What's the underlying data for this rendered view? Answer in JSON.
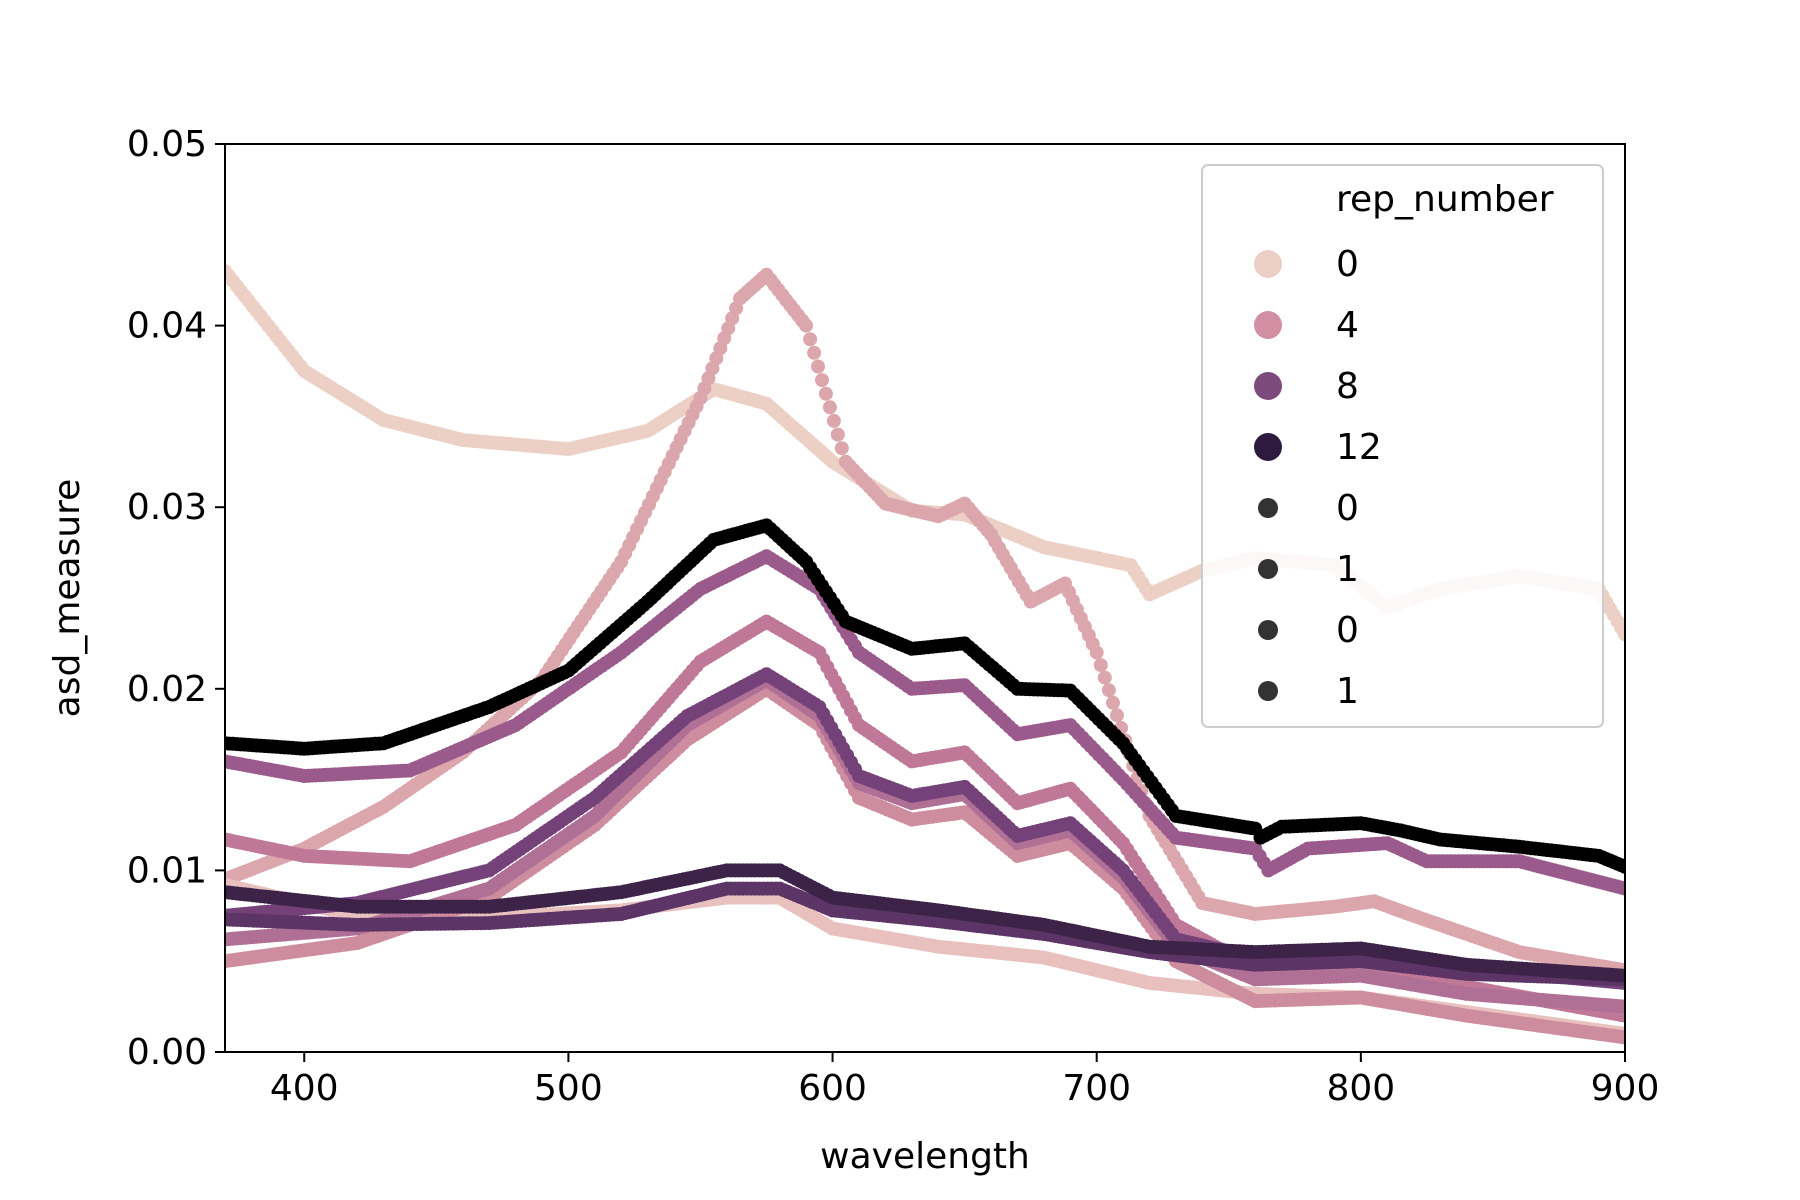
{
  "chart_data": {
    "type": "scatter",
    "title": "",
    "xlabel": "wavelength",
    "ylabel": "asd_measure",
    "xlim": [
      370,
      900
    ],
    "ylim": [
      0,
      0.05
    ],
    "xticks": [
      400,
      500,
      600,
      700,
      800,
      900
    ],
    "yticks": [
      0.0,
      0.01,
      0.02,
      0.03,
      0.04,
      0.05
    ],
    "ytick_labels": [
      "0.00",
      "0.01",
      "0.02",
      "0.03",
      "0.04",
      "0.05"
    ],
    "grid": false,
    "legend": {
      "placement": "top-right",
      "title": "rep_number",
      "entries": [
        {
          "label": "0",
          "color": "#ecd0c6",
          "size": "large"
        },
        {
          "label": "4",
          "color": "#d28ea2",
          "size": "large"
        },
        {
          "label": "8",
          "color": "#7d4a7e",
          "size": "large"
        },
        {
          "label": "12",
          "color": "#2e1a3f",
          "size": "large"
        },
        {
          "label": "0",
          "color": "#333333",
          "size": "small"
        },
        {
          "label": "1",
          "color": "#333333",
          "size": "small"
        },
        {
          "label": "0",
          "color": "#333333",
          "size": "small"
        },
        {
          "label": "1",
          "color": "#333333",
          "size": "small"
        }
      ]
    },
    "series": [
      {
        "color": "#ecd0c6",
        "points": [
          [
            370,
            0.043
          ],
          [
            400,
            0.0375
          ],
          [
            430,
            0.0348
          ],
          [
            460,
            0.0337
          ],
          [
            500,
            0.0332
          ],
          [
            530,
            0.0342
          ],
          [
            555,
            0.0365
          ],
          [
            575,
            0.0357
          ],
          [
            600,
            0.0325
          ],
          [
            630,
            0.0298
          ],
          [
            650,
            0.0296
          ],
          [
            680,
            0.0278
          ],
          [
            700,
            0.0272
          ],
          [
            713,
            0.0268
          ],
          [
            720,
            0.0252
          ],
          [
            740,
            0.0265
          ],
          [
            760,
            0.0272
          ],
          [
            790,
            0.0268
          ],
          [
            810,
            0.0245
          ],
          [
            830,
            0.0255
          ],
          [
            860,
            0.0262
          ],
          [
            890,
            0.0255
          ],
          [
            900,
            0.023
          ]
        ]
      },
      {
        "color": "#dca6ad",
        "points": [
          [
            370,
            0.0095
          ],
          [
            400,
            0.0112
          ],
          [
            430,
            0.0135
          ],
          [
            460,
            0.0165
          ],
          [
            490,
            0.0205
          ],
          [
            520,
            0.027
          ],
          [
            550,
            0.036
          ],
          [
            565,
            0.0415
          ],
          [
            575,
            0.0428
          ],
          [
            590,
            0.04
          ],
          [
            605,
            0.0325
          ],
          [
            620,
            0.0302
          ],
          [
            640,
            0.0295
          ],
          [
            650,
            0.0302
          ],
          [
            660,
            0.0285
          ],
          [
            675,
            0.0248
          ],
          [
            688,
            0.0258
          ],
          [
            700,
            0.022
          ],
          [
            720,
            0.013
          ],
          [
            740,
            0.0082
          ],
          [
            760,
            0.0076
          ],
          [
            790,
            0.008
          ],
          [
            805,
            0.0083
          ],
          [
            820,
            0.0075
          ],
          [
            860,
            0.0055
          ],
          [
            900,
            0.0045
          ]
        ]
      },
      {
        "color": "#e8c0be",
        "points": [
          [
            370,
            0.0092
          ],
          [
            420,
            0.0075
          ],
          [
            470,
            0.0074
          ],
          [
            520,
            0.0078
          ],
          [
            560,
            0.0085
          ],
          [
            580,
            0.0085
          ],
          [
            600,
            0.0068
          ],
          [
            640,
            0.0058
          ],
          [
            680,
            0.0052
          ],
          [
            720,
            0.0038
          ],
          [
            760,
            0.0032
          ],
          [
            800,
            0.003
          ],
          [
            840,
            0.0022
          ],
          [
            900,
            0.001
          ]
        ]
      },
      {
        "color": "#cd8d9f",
        "points": [
          [
            370,
            0.005
          ],
          [
            420,
            0.006
          ],
          [
            470,
            0.0085
          ],
          [
            510,
            0.0125
          ],
          [
            545,
            0.0172
          ],
          [
            575,
            0.02
          ],
          [
            595,
            0.018
          ],
          [
            610,
            0.014
          ],
          [
            630,
            0.0128
          ],
          [
            650,
            0.0132
          ],
          [
            670,
            0.0108
          ],
          [
            690,
            0.0115
          ],
          [
            710,
            0.009
          ],
          [
            730,
            0.005
          ],
          [
            760,
            0.0028
          ],
          [
            800,
            0.003
          ],
          [
            840,
            0.002
          ],
          [
            900,
            0.0008
          ]
        ]
      },
      {
        "color": "#c07898",
        "points": [
          [
            370,
            0.0117
          ],
          [
            400,
            0.0108
          ],
          [
            440,
            0.0105
          ],
          [
            480,
            0.0125
          ],
          [
            520,
            0.0165
          ],
          [
            550,
            0.0215
          ],
          [
            575,
            0.0237
          ],
          [
            595,
            0.022
          ],
          [
            610,
            0.018
          ],
          [
            630,
            0.016
          ],
          [
            650,
            0.0165
          ],
          [
            670,
            0.0137
          ],
          [
            690,
            0.0145
          ],
          [
            710,
            0.0115
          ],
          [
            730,
            0.007
          ],
          [
            760,
            0.0046
          ],
          [
            800,
            0.0048
          ],
          [
            840,
            0.0036
          ],
          [
            900,
            0.002
          ]
        ]
      },
      {
        "color": "#b07096",
        "points": [
          [
            370,
            0.0062
          ],
          [
            420,
            0.0068
          ],
          [
            470,
            0.009
          ],
          [
            510,
            0.013
          ],
          [
            545,
            0.018
          ],
          [
            575,
            0.0205
          ],
          [
            595,
            0.0185
          ],
          [
            610,
            0.0148
          ],
          [
            630,
            0.0137
          ],
          [
            650,
            0.0142
          ],
          [
            670,
            0.0115
          ],
          [
            690,
            0.0122
          ],
          [
            710,
            0.0096
          ],
          [
            730,
            0.0058
          ],
          [
            760,
            0.004
          ],
          [
            800,
            0.0042
          ],
          [
            840,
            0.0032
          ],
          [
            900,
            0.0025
          ]
        ]
      },
      {
        "color": "#744279",
        "points": [
          [
            370,
            0.0075
          ],
          [
            420,
            0.0082
          ],
          [
            470,
            0.01
          ],
          [
            510,
            0.014
          ],
          [
            545,
            0.0185
          ],
          [
            575,
            0.0208
          ],
          [
            595,
            0.019
          ],
          [
            610,
            0.0152
          ],
          [
            630,
            0.0141
          ],
          [
            650,
            0.0146
          ],
          [
            670,
            0.0119
          ],
          [
            690,
            0.0126
          ],
          [
            710,
            0.01
          ],
          [
            730,
            0.0062
          ],
          [
            760,
            0.0052
          ],
          [
            800,
            0.0054
          ],
          [
            840,
            0.0046
          ],
          [
            900,
            0.0038
          ]
        ]
      },
      {
        "color": "#9a5a8c",
        "points": [
          [
            370,
            0.016
          ],
          [
            400,
            0.0152
          ],
          [
            440,
            0.0155
          ],
          [
            480,
            0.018
          ],
          [
            520,
            0.022
          ],
          [
            550,
            0.0255
          ],
          [
            575,
            0.0273
          ],
          [
            595,
            0.0255
          ],
          [
            610,
            0.022
          ],
          [
            630,
            0.02
          ],
          [
            650,
            0.0202
          ],
          [
            670,
            0.0175
          ],
          [
            690,
            0.018
          ],
          [
            710,
            0.015
          ],
          [
            730,
            0.0118
          ],
          [
            760,
            0.0112
          ],
          [
            765,
            0.01
          ],
          [
            780,
            0.0112
          ],
          [
            810,
            0.0115
          ],
          [
            825,
            0.0105
          ],
          [
            860,
            0.0105
          ],
          [
            900,
            0.009
          ]
        ]
      },
      {
        "color": "#5c3566",
        "points": [
          [
            370,
            0.0073
          ],
          [
            420,
            0.007
          ],
          [
            470,
            0.0071
          ],
          [
            520,
            0.0076
          ],
          [
            560,
            0.009
          ],
          [
            580,
            0.009
          ],
          [
            600,
            0.0078
          ],
          [
            640,
            0.0072
          ],
          [
            680,
            0.0065
          ],
          [
            720,
            0.0055
          ],
          [
            760,
            0.0048
          ],
          [
            800,
            0.005
          ],
          [
            840,
            0.0043
          ],
          [
            900,
            0.004
          ]
        ]
      },
      {
        "color": "#3d2348",
        "points": [
          [
            370,
            0.0088
          ],
          [
            420,
            0.008
          ],
          [
            470,
            0.008
          ],
          [
            520,
            0.0088
          ],
          [
            560,
            0.01
          ],
          [
            580,
            0.01
          ],
          [
            600,
            0.0085
          ],
          [
            640,
            0.0078
          ],
          [
            680,
            0.007
          ],
          [
            720,
            0.0058
          ],
          [
            760,
            0.0055
          ],
          [
            800,
            0.0057
          ],
          [
            840,
            0.0048
          ],
          [
            900,
            0.0042
          ]
        ]
      },
      {
        "color": "#000000",
        "points": [
          [
            370,
            0.017
          ],
          [
            400,
            0.0167
          ],
          [
            430,
            0.017
          ],
          [
            470,
            0.019
          ],
          [
            500,
            0.021
          ],
          [
            530,
            0.0248
          ],
          [
            555,
            0.0282
          ],
          [
            575,
            0.029
          ],
          [
            590,
            0.027
          ],
          [
            605,
            0.0237
          ],
          [
            630,
            0.0222
          ],
          [
            650,
            0.0225
          ],
          [
            670,
            0.02
          ],
          [
            690,
            0.0199
          ],
          [
            710,
            0.017
          ],
          [
            730,
            0.013
          ],
          [
            760,
            0.0123
          ],
          [
            762,
            0.0118
          ],
          [
            770,
            0.0124
          ],
          [
            800,
            0.0126
          ],
          [
            815,
            0.0122
          ],
          [
            830,
            0.0117
          ],
          [
            860,
            0.0113
          ],
          [
            890,
            0.0108
          ],
          [
            900,
            0.0102
          ]
        ]
      }
    ]
  }
}
